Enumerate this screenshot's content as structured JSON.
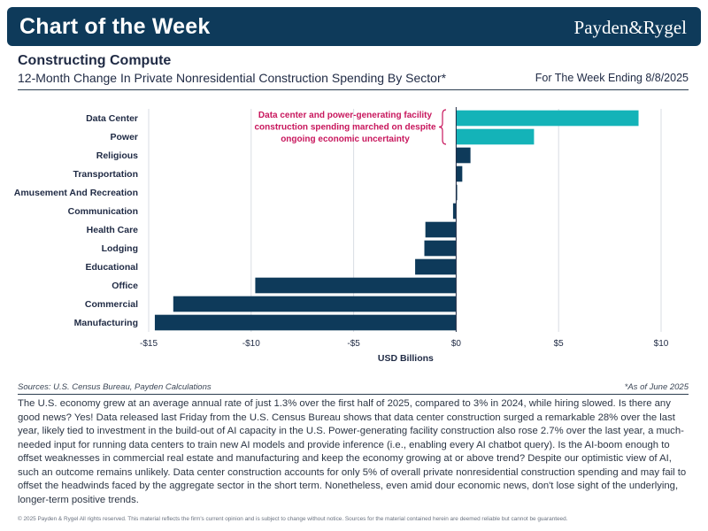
{
  "header": {
    "title": "Chart of the Week",
    "logo": "Payden&Rygel"
  },
  "chart_header": {
    "title": "Constructing Compute",
    "subtitle": "12-Month Change In Private Nonresidential Construction Spending By Sector*",
    "week_ending": "For The Week Ending 8/8/2025"
  },
  "chart_data": {
    "type": "bar",
    "orientation": "horizontal",
    "title": "12-Month Change In Private Nonresidential Construction Spending By Sector*",
    "xlabel": "USD Billions",
    "ylabel": "",
    "xlim": [
      -15,
      10
    ],
    "xticks": [
      -15,
      -10,
      -5,
      0,
      5,
      10
    ],
    "xtick_labels": [
      "-$15",
      "-$10",
      "-$5",
      "$0",
      "$5",
      "$10"
    ],
    "grid": "vertical",
    "categories": [
      "Data Center",
      "Power",
      "Religious",
      "Transportation",
      "Amusement And Recreation",
      "Communication",
      "Health Care",
      "Lodging",
      "Educational",
      "Office",
      "Commercial",
      "Manufacturing"
    ],
    "values": [
      8.9,
      3.8,
      0.7,
      0.3,
      0.05,
      -0.15,
      -1.5,
      -1.55,
      -2.0,
      -9.8,
      -13.8,
      -14.7
    ],
    "colors": [
      "#14b3b8",
      "#14b3b8",
      "#0e3a5a",
      "#0e3a5a",
      "#0e3a5a",
      "#0e3a5a",
      "#0e3a5a",
      "#0e3a5a",
      "#0e3a5a",
      "#0e3a5a",
      "#0e3a5a",
      "#0e3a5a"
    ],
    "annotation": {
      "lines": [
        "Data center and power-generating facility",
        "construction spending marched on despite",
        "ongoing economic uncertainty"
      ],
      "color": "#c8175d"
    }
  },
  "sources": "Sources: U.S. Census Bureau, Payden Calculations",
  "note": "*As of June 2025",
  "body_text": "The U.S. economy grew at an average annual rate of just 1.3% over the first half of 2025, compared to 3% in 2024, while hiring slowed. Is there any good news? Yes! Data released last Friday from the U.S. Census Bureau shows that data center construction surged a remarkable 28% over the last year, likely tied to investment in the build-out of AI capacity in the U.S. Power-generating facility construction also rose 2.7% over the last year, a much-needed input for running data centers to train new AI models and provide inference (i.e., enabling every AI chatbot query). Is the AI-boom enough to offset weaknesses in commercial real estate and manufacturing and keep the economy growing at or above trend? Despite our optimistic view of AI, such an outcome remains unlikely. Data center construction accounts for only 5% of overall private nonresidential construction spending and may fail to offset the headwinds faced by the aggregate sector in the short term. Nonetheless, even amid dour economic news, don't lose sight of the underlying, longer-term positive trends.",
  "footer": "© 2025 Payden & Rygel All rights reserved. This material reflects the firm's current opinion and is subject to change without notice. Sources for the material contained herein are deemed reliable but cannot be guaranteed."
}
